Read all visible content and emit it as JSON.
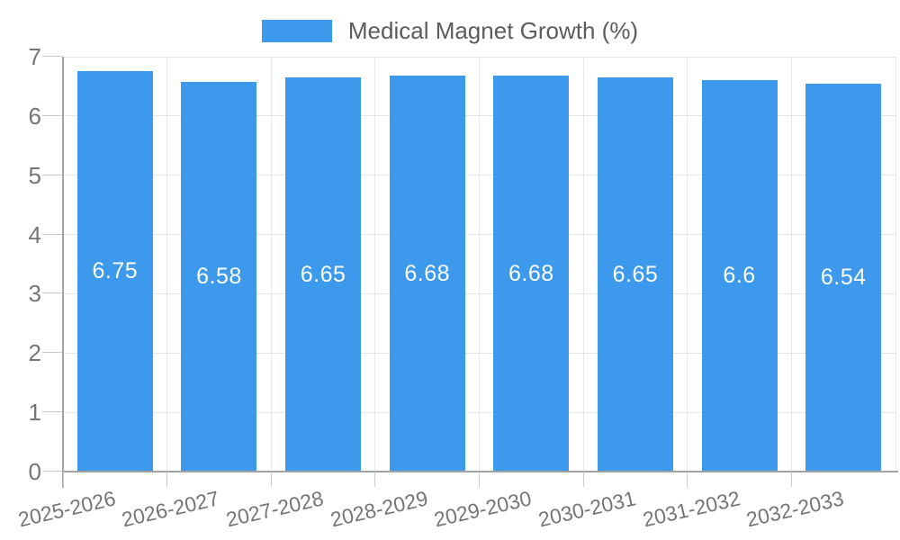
{
  "chart_data": {
    "type": "bar",
    "title": "Medical Magnet Growth (%)",
    "legend_position": "top-center",
    "categories": [
      "2025-2026",
      "2026-2027",
      "2027-2028",
      "2028-2029",
      "2029-2030",
      "2030-2031",
      "2031-2032",
      "2032-2033"
    ],
    "series": [
      {
        "name": "Medical Magnet Growth (%)",
        "values": [
          6.75,
          6.58,
          6.65,
          6.68,
          6.68,
          6.65,
          6.6,
          6.54
        ]
      }
    ],
    "value_labels": [
      "6.75",
      "6.58",
      "6.65",
      "6.68",
      "6.68",
      "6.65",
      "6.6",
      "6.54"
    ],
    "yticks": [
      "0",
      "1",
      "2",
      "3",
      "4",
      "5",
      "6",
      "7"
    ],
    "ylim": [
      0,
      7
    ],
    "xlabel": "",
    "ylabel": "",
    "grid": "horizontal and vertical gridlines on",
    "x_label_rotation_deg": -13,
    "colors": {
      "bar": "#3C99EB",
      "grid": "#e6e6e6",
      "axis": "#a3a3a3",
      "tick": "#c9c9c9",
      "axis_label": "#757575",
      "value_label": "#ffffff",
      "legend_text": "#5c5c5c"
    }
  }
}
